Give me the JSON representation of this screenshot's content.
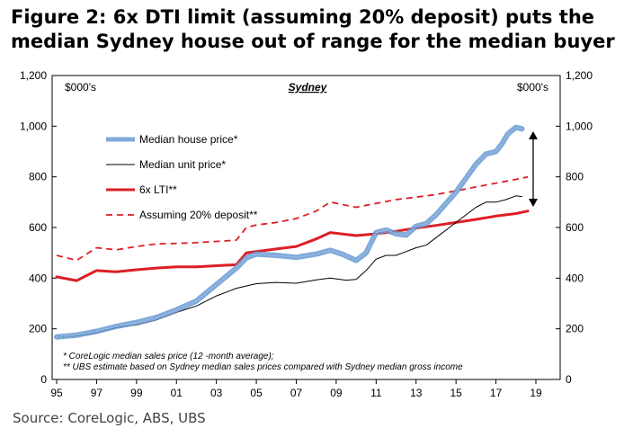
{
  "figure": {
    "title": "Figure 2: 6x DTI limit (assuming 20% deposit) puts the median Sydney house out of range for the median buyer",
    "source": "Source:  CoreLogic, ABS, UBS"
  },
  "chart_data": {
    "type": "line",
    "subtitle": "Sydney",
    "left_unit": "$000's",
    "right_unit": "$000's",
    "ylim": [
      0,
      1200
    ],
    "y_ticks": [
      "0",
      "200",
      "400",
      "600",
      "800",
      "1,000",
      "1,200"
    ],
    "xlim": [
      1995,
      2019
    ],
    "x_ticks": [
      "95",
      "97",
      "99",
      "01",
      "03",
      "05",
      "07",
      "09",
      "11",
      "13",
      "15",
      "17",
      "19"
    ],
    "grid": false,
    "legend_position": "top-left",
    "series": [
      {
        "name": "Median house price*",
        "color": "#6a9bd3",
        "style": "marker-line",
        "x": [
          1995,
          1996,
          1997,
          1998,
          1999,
          2000,
          2001,
          2002,
          2003,
          2004,
          2004.5,
          2005,
          2006,
          2007,
          2008,
          2008.7,
          2009.3,
          2010,
          2010.5,
          2011,
          2011.5,
          2012,
          2012.5,
          2013,
          2013.5,
          2014,
          2015,
          2016,
          2016.5,
          2017,
          2017.3,
          2017.6,
          2018,
          2018.3
        ],
        "values": [
          168,
          175,
          190,
          210,
          225,
          245,
          275,
          310,
          375,
          440,
          480,
          495,
          490,
          482,
          495,
          510,
          495,
          470,
          500,
          580,
          590,
          575,
          570,
          605,
          615,
          650,
          740,
          850,
          890,
          900,
          930,
          970,
          995,
          990
        ]
      },
      {
        "name": "Median unit price*",
        "color": "#000000",
        "style": "line",
        "x": [
          1995,
          1996,
          1997,
          1998,
          1999,
          2000,
          2001,
          2002,
          2003,
          2004,
          2005,
          2006,
          2007,
          2008,
          2008.7,
          2009.5,
          2010,
          2010.5,
          2011,
          2011.5,
          2012,
          2012.5,
          2013,
          2013.5,
          2014,
          2015,
          2016,
          2016.5,
          2017,
          2017.5,
          2018,
          2018.3
        ],
        "values": [
          168,
          172,
          185,
          205,
          215,
          235,
          265,
          290,
          330,
          360,
          378,
          383,
          380,
          393,
          400,
          392,
          395,
          430,
          475,
          490,
          490,
          505,
          520,
          530,
          560,
          620,
          680,
          700,
          700,
          710,
          725,
          722
        ]
      },
      {
        "name": "6x LTI**",
        "color": "#dd1f26",
        "style": "thick-line",
        "x": [
          1995,
          1996,
          1997,
          1998,
          1999,
          2000,
          2001,
          2002,
          2003,
          2004,
          2004.5,
          2005,
          2006,
          2007,
          2008,
          2008.7,
          2010,
          2011,
          2012,
          2013,
          2014,
          2015,
          2016,
          2017,
          2018,
          2018.6
        ],
        "values": [
          405,
          390,
          430,
          425,
          433,
          440,
          445,
          445,
          449,
          453,
          500,
          505,
          515,
          525,
          555,
          580,
          568,
          575,
          585,
          598,
          608,
          620,
          632,
          645,
          655,
          665
        ]
      },
      {
        "name": "Assuming 20% deposit**",
        "color": "#dd1f26",
        "style": "dashed-line",
        "x": [
          1995,
          1996,
          1997,
          1998,
          1999,
          2000,
          2001,
          2002,
          2003,
          2004,
          2004.5,
          2005,
          2006,
          2007,
          2008,
          2008.7,
          2010,
          2011,
          2012,
          2013,
          2014,
          2015,
          2016,
          2017,
          2018,
          2018.6
        ],
        "values": [
          490,
          470,
          520,
          512,
          525,
          535,
          537,
          540,
          545,
          550,
          600,
          610,
          620,
          635,
          665,
          700,
          680,
          695,
          710,
          720,
          730,
          745,
          760,
          775,
          790,
          800
        ]
      }
    ],
    "annotations": [
      "* CoreLogic median sales price (12 -month average);",
      "** UBS estimate based on Sydney median sales prices compared with Sydney median gross income"
    ]
  }
}
